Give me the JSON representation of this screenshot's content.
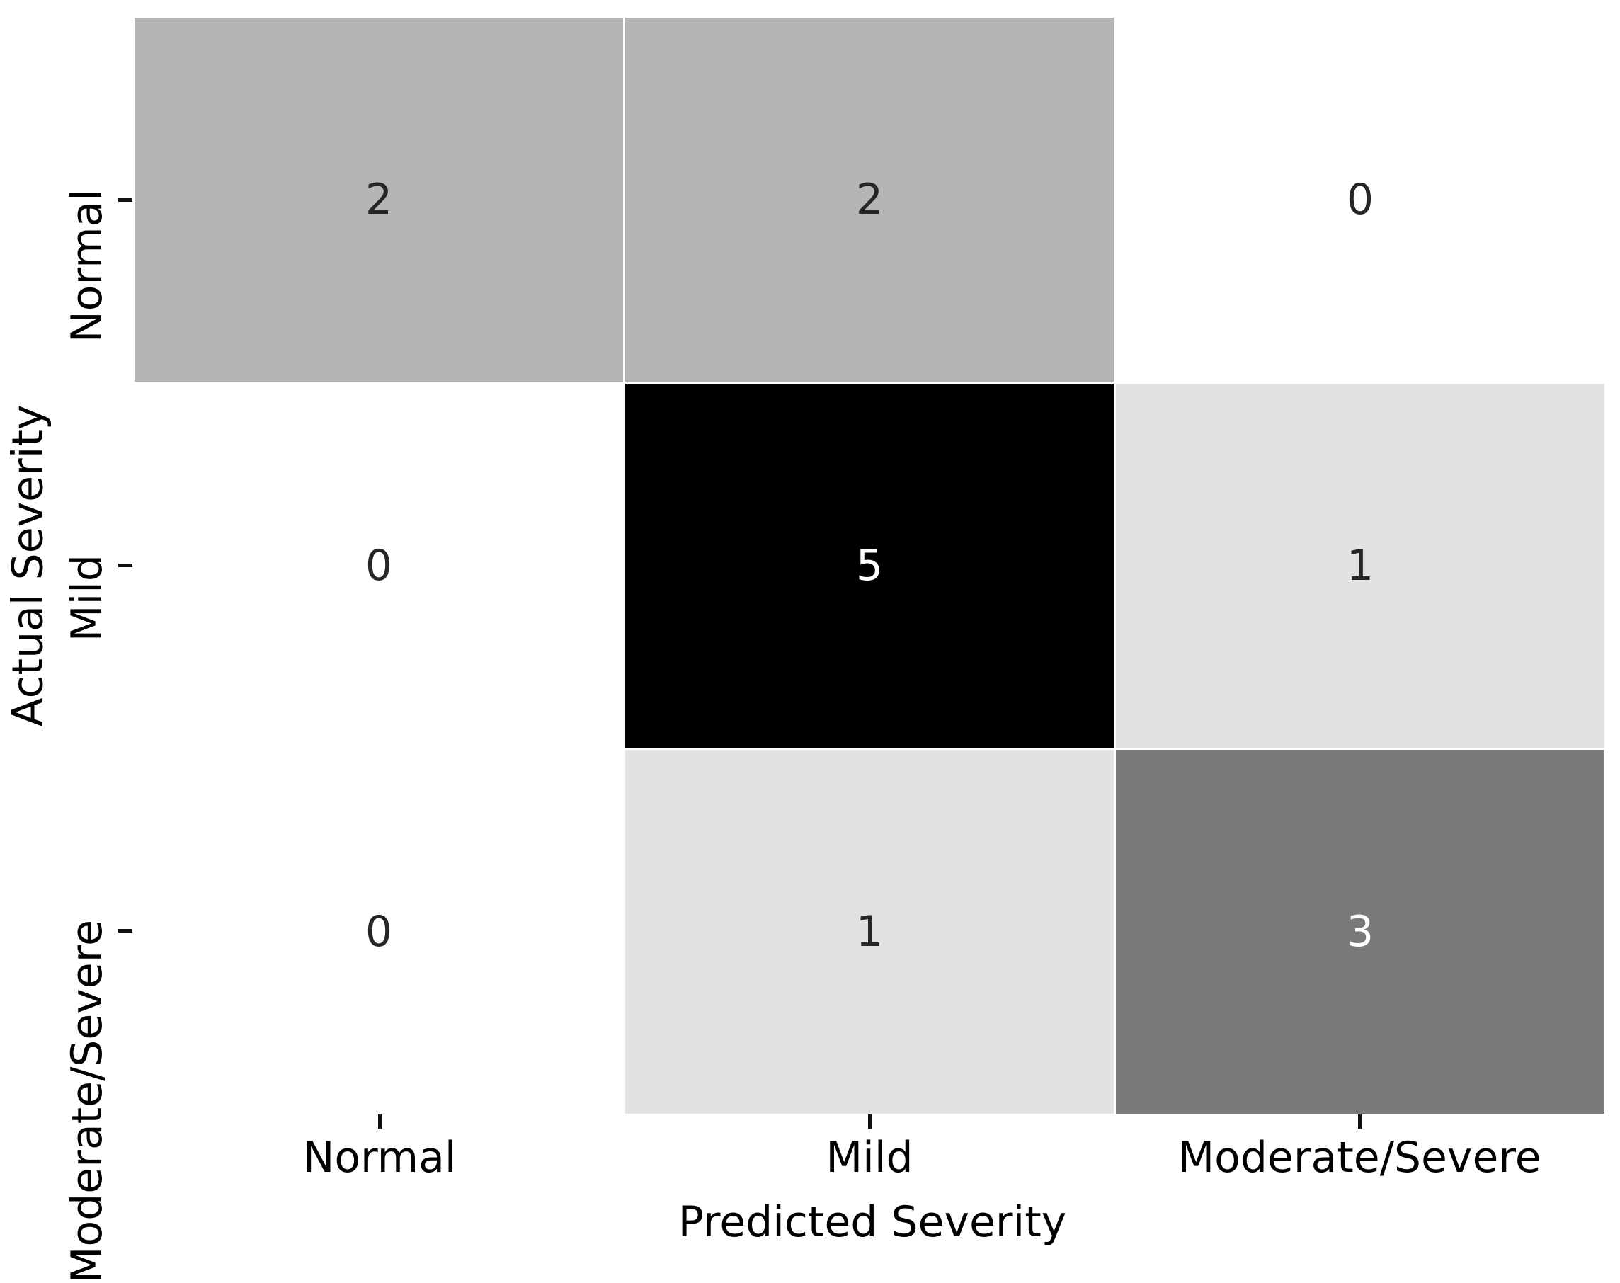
{
  "figure": {
    "kind": "confusion-matrix",
    "background": "#ffffff"
  },
  "chart_data": {
    "type": "heatmap",
    "title": "",
    "xlabel": "Predicted Severity",
    "ylabel": "Actual Severity",
    "x_categories": [
      "Normal",
      "Mild",
      "Moderate/Severe"
    ],
    "y_categories": [
      "Normal",
      "Mild",
      "Moderate/Severe"
    ],
    "values": [
      [
        2,
        2,
        0
      ],
      [
        0,
        5,
        1
      ],
      [
        0,
        1,
        3
      ]
    ],
    "vmin": 0,
    "vmax": 5,
    "colormap": "Greys",
    "grid": false,
    "legend_position": "none",
    "cell_colors": [
      [
        "#b5b5b5",
        "#b5b5b5",
        "#ffffff"
      ],
      [
        "#ffffff",
        "#000000",
        "#e2e2e2"
      ],
      [
        "#ffffff",
        "#e2e2e2",
        "#7a7a7a"
      ]
    ],
    "annot_colors": [
      [
        "#262626",
        "#262626",
        "#262626"
      ],
      [
        "#262626",
        "#ffffff",
        "#262626"
      ],
      [
        "#262626",
        "#262626",
        "#ffffff"
      ]
    ],
    "tick_color": "#101010",
    "label_color": "#000000"
  }
}
